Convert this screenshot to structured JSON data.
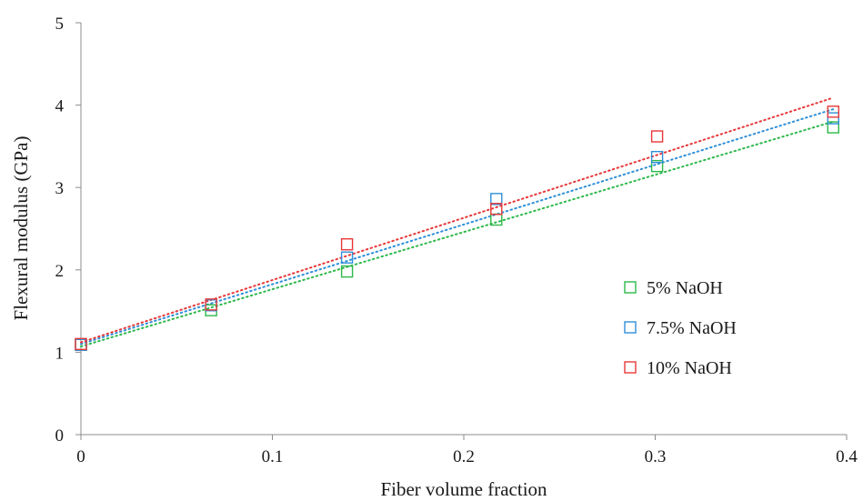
{
  "chart_data": {
    "type": "scatter",
    "title": "",
    "xlabel": "Fiber volume fraction",
    "ylabel": "Flexural modulus (GPa)",
    "xlim": [
      0,
      0.4
    ],
    "ylim": [
      0,
      5
    ],
    "x_ticks": [
      0,
      0.1,
      0.2,
      0.3,
      0.4
    ],
    "x_tick_labels": [
      "0",
      "0.1",
      "0.2",
      "0.3",
      "0.4"
    ],
    "y_ticks": [
      0,
      1,
      2,
      3,
      4,
      5
    ],
    "y_tick_labels": [
      "0",
      "1",
      "2",
      "3",
      "4",
      "5"
    ],
    "grid": false,
    "legend_position": "right",
    "x": [
      0,
      0.068,
      0.139,
      0.217,
      0.301,
      0.393
    ],
    "series": [
      {
        "name": "5% NaOH",
        "color": "#2eb84a",
        "values": [
          1.09,
          1.51,
          1.98,
          2.61,
          3.26,
          3.73
        ],
        "trendline": {
          "type": "linear",
          "start": 1.07,
          "end": 3.8
        }
      },
      {
        "name": "7.5% NaOH",
        "color": "#2f8fd8",
        "values": [
          1.09,
          1.57,
          2.15,
          2.86,
          3.37,
          3.84
        ],
        "trendline": {
          "type": "linear",
          "start": 1.1,
          "end": 3.95
        }
      },
      {
        "name": "10% NaOH",
        "color": "#e8383a",
        "values": [
          1.1,
          1.58,
          2.31,
          2.74,
          3.62,
          3.92
        ],
        "trendline": {
          "type": "linear",
          "start": 1.12,
          "end": 4.09
        }
      }
    ]
  }
}
